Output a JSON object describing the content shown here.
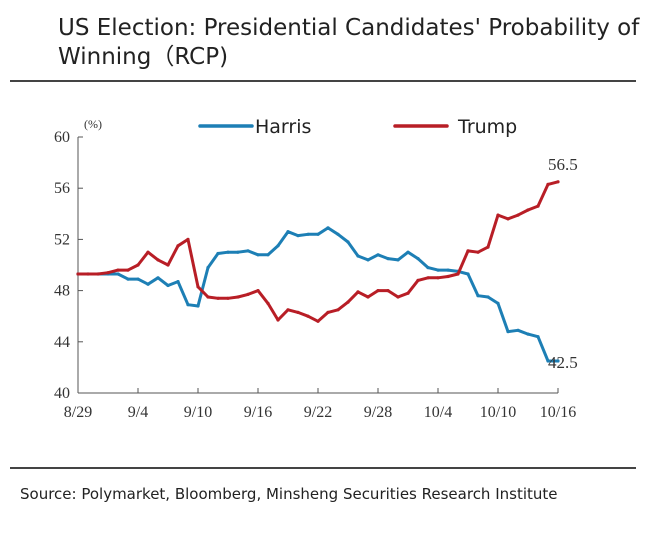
{
  "title": "US Election: Presidential Candidates' Probability of Winning（RCP)",
  "source": "Source: Polymarket, Bloomberg, Minsheng Securities Research Institute",
  "chart_data": {
    "type": "line",
    "ylabel": "(%)",
    "ylim": [
      40,
      60
    ],
    "yticks": [
      "60",
      "56",
      "52",
      "48",
      "44",
      "40"
    ],
    "xticks": [
      "8/29",
      "9/4",
      "9/10",
      "9/16",
      "9/22",
      "9/28",
      "10/4",
      "10/10",
      "10/16"
    ],
    "x": [
      "8/29",
      "8/30",
      "8/31",
      "9/1",
      "9/2",
      "9/3",
      "9/4",
      "9/5",
      "9/6",
      "9/7",
      "9/8",
      "9/9",
      "9/10",
      "9/11",
      "9/12",
      "9/13",
      "9/14",
      "9/15",
      "9/16",
      "9/17",
      "9/18",
      "9/19",
      "9/20",
      "9/21",
      "9/22",
      "9/23",
      "9/24",
      "9/25",
      "9/26",
      "9/27",
      "9/28",
      "9/29",
      "9/30",
      "10/1",
      "10/2",
      "10/3",
      "10/4",
      "10/5",
      "10/6",
      "10/7",
      "10/8",
      "10/9",
      "10/10",
      "10/11",
      "10/12",
      "10/13",
      "10/14",
      "10/15",
      "10/16"
    ],
    "grid": false,
    "legend": "top",
    "series": [
      {
        "name": "Harris",
        "color": "#1d7fb5",
        "values": [
          49.3,
          49.3,
          49.3,
          49.3,
          49.3,
          48.9,
          48.9,
          48.5,
          49.0,
          48.4,
          48.7,
          46.9,
          46.8,
          49.8,
          50.9,
          51.0,
          51.0,
          51.1,
          50.8,
          50.8,
          51.5,
          52.6,
          52.3,
          52.4,
          52.4,
          52.9,
          52.4,
          51.8,
          50.7,
          50.4,
          50.8,
          50.5,
          50.4,
          51.0,
          50.5,
          49.8,
          49.6,
          49.6,
          49.5,
          49.3,
          47.6,
          47.5,
          47.0,
          44.8,
          44.9,
          44.6,
          44.4,
          42.5,
          42.5
        ],
        "end_label": "42.5"
      },
      {
        "name": "Trump",
        "color": "#b81e26",
        "values": [
          49.3,
          49.3,
          49.3,
          49.4,
          49.6,
          49.6,
          50.0,
          51.0,
          50.4,
          50.0,
          51.5,
          52.0,
          48.3,
          47.5,
          47.4,
          47.4,
          47.5,
          47.7,
          48.0,
          47.0,
          45.7,
          46.5,
          46.3,
          46.0,
          45.6,
          46.3,
          46.5,
          47.1,
          47.9,
          47.5,
          48.0,
          48.0,
          47.5,
          47.8,
          48.8,
          49.0,
          49.0,
          49.1,
          49.3,
          51.1,
          51.0,
          51.4,
          53.9,
          53.6,
          53.9,
          54.3,
          54.6,
          56.3,
          56.5
        ],
        "end_label": "56.5"
      }
    ]
  }
}
